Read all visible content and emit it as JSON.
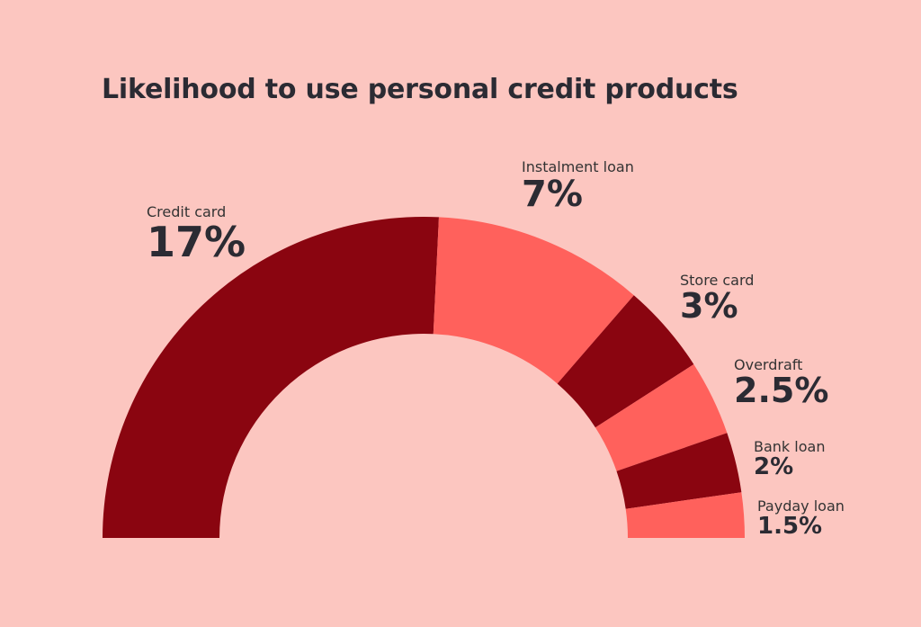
{
  "chart_data": {
    "type": "pie",
    "subtype": "half-donut",
    "title": "Likelihood to use personal credit products",
    "categories": [
      "Credit card",
      "Instalment loan",
      "Store card",
      "Overdraft",
      "Bank loan",
      "Payday loan"
    ],
    "values": [
      17,
      7,
      3,
      2.5,
      2,
      1.5
    ],
    "value_labels": [
      "17%",
      "7%",
      "3%",
      "2.5%",
      "2%",
      "1.5%"
    ],
    "colors": [
      "#8a0510",
      "#ff615c",
      "#8a0510",
      "#ff615c",
      "#8a0510",
      "#ff615c"
    ]
  }
}
